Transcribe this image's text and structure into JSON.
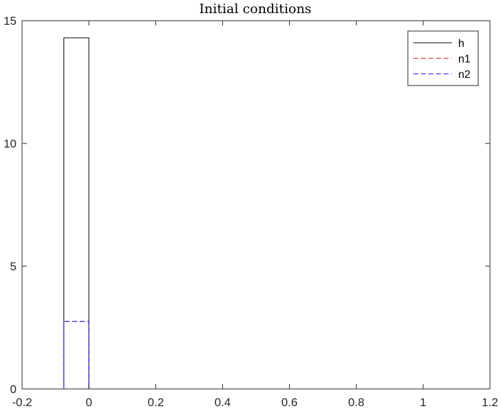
{
  "chart_data": {
    "type": "line",
    "title": "Initial conditions",
    "xlabel": "",
    "ylabel": "",
    "xlim": [
      -0.2,
      1.2
    ],
    "ylim": [
      0,
      15
    ],
    "x_ticks": [
      -0.2,
      0,
      0.2,
      0.4,
      0.6,
      0.8,
      1,
      1.2
    ],
    "x_tick_labels": [
      "-0.2",
      "0",
      "0.2",
      "0.4",
      "0.6",
      "0.8",
      "1",
      "1.2"
    ],
    "y_ticks": [
      0,
      5,
      10,
      15
    ],
    "y_tick_labels": [
      "0",
      "5",
      "10",
      "15"
    ],
    "grid": false,
    "legend_position": "top-right",
    "series": [
      {
        "name": "h",
        "color": "#000000",
        "dash": "solid",
        "x": [
          -0.075,
          -0.075,
          0,
          0,
          1.2
        ],
        "y": [
          0,
          14.3,
          14.3,
          0,
          0
        ]
      },
      {
        "name": "n1",
        "color": "#d62728",
        "dash": "dashed",
        "x": [
          -0.075,
          -0.075,
          0,
          0,
          1.2
        ],
        "y": [
          0,
          2.75,
          2.75,
          0,
          0
        ]
      },
      {
        "name": "n2",
        "color": "#0000ff",
        "dash": "dashed",
        "x": [
          -0.075,
          -0.075,
          0,
          0,
          1.2
        ],
        "y": [
          0,
          2.75,
          2.75,
          0,
          0
        ]
      }
    ]
  }
}
